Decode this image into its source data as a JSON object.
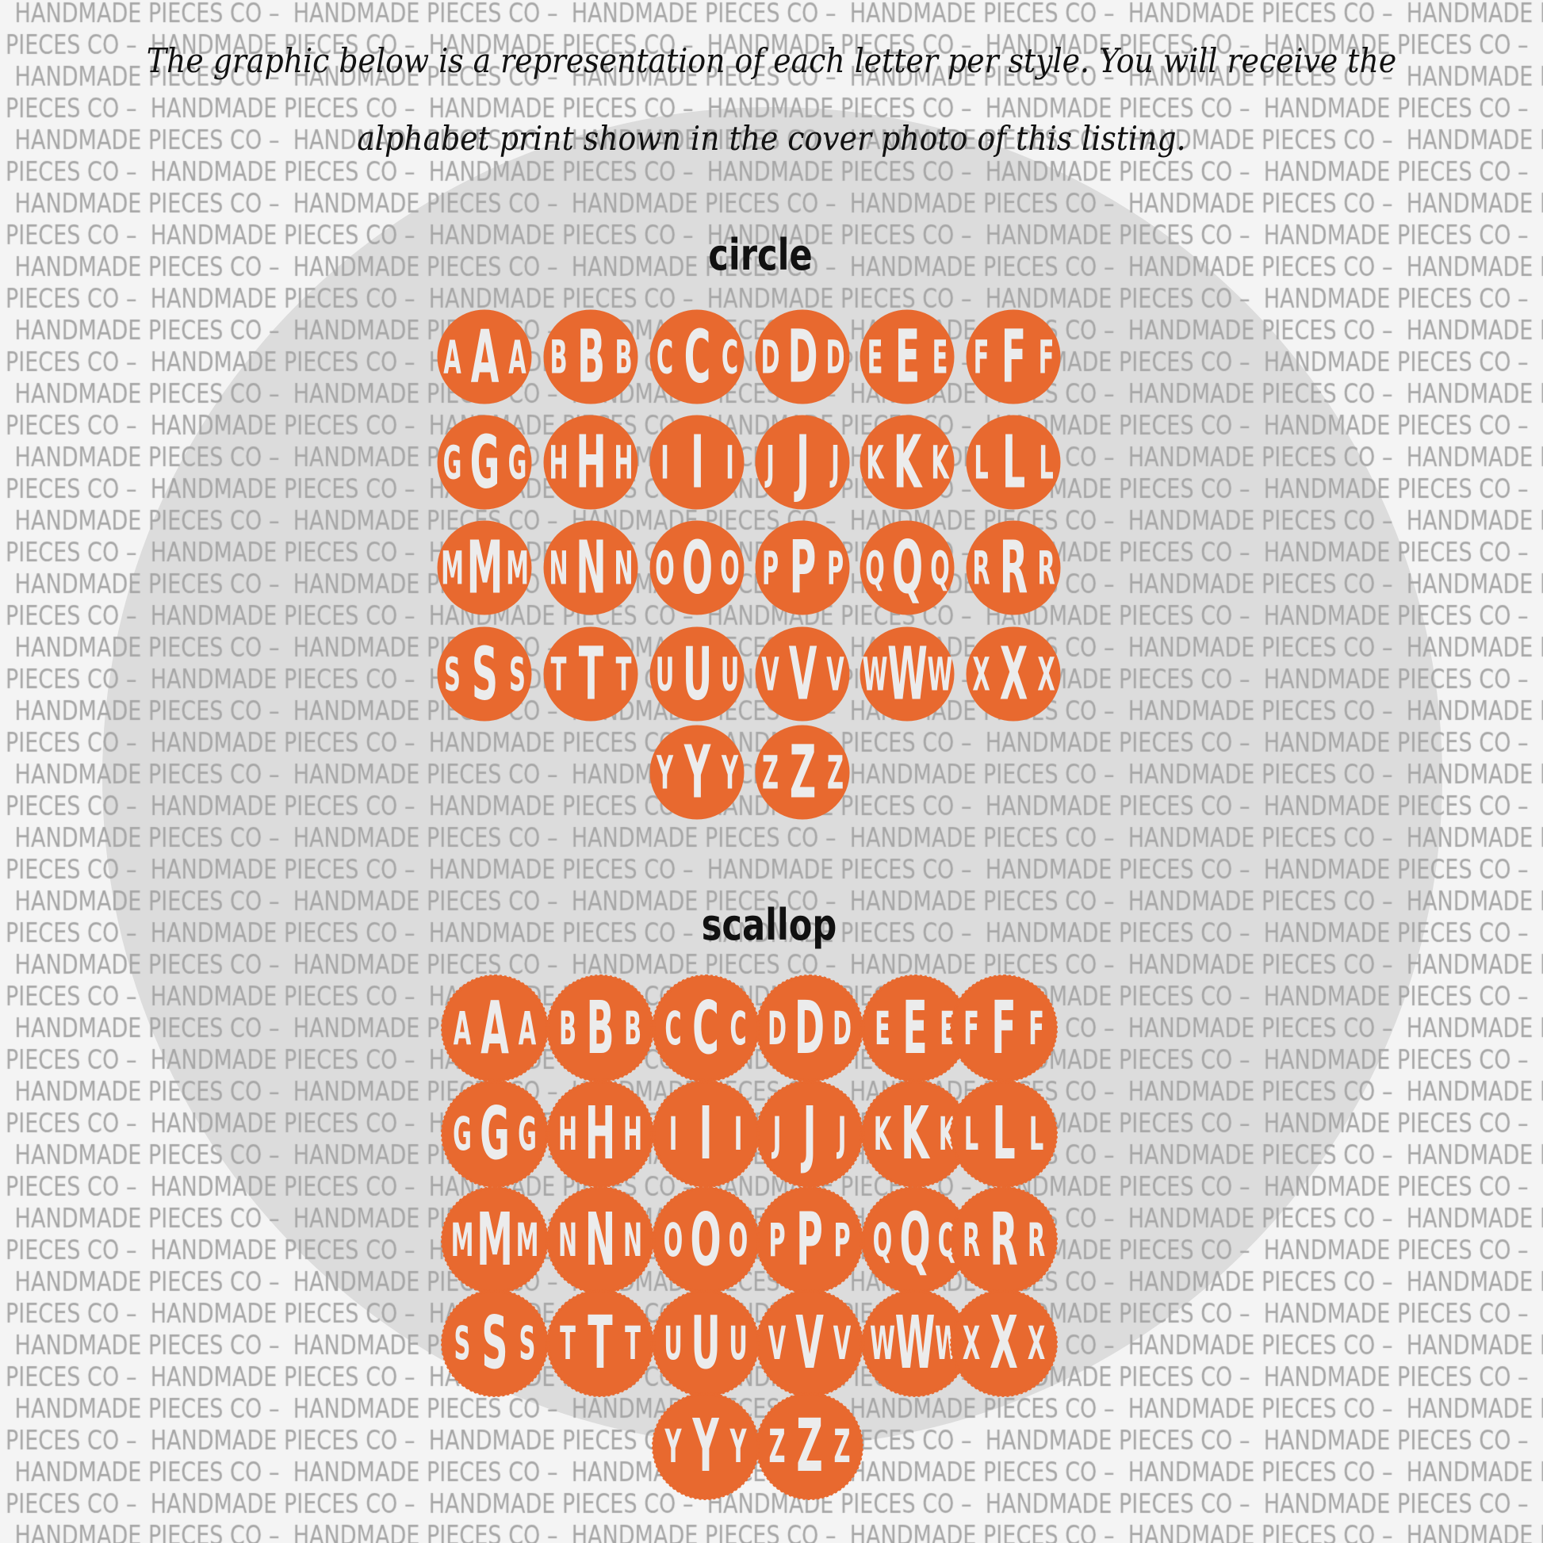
{
  "heading": {
    "line1": "The graphic below is a representation of each letter per style. You will receive the",
    "line2": "alphabet print shown in the cover photo of this listing."
  },
  "watermark_text": "HANDMADE PIECES CO –",
  "colors": {
    "monogram": "#e8692f",
    "background": "#f4f4f4",
    "watermark": "#a6a6a6",
    "background_circle": "#dcdcdc"
  },
  "sections": [
    {
      "title": "circle",
      "style": "circle",
      "letters": [
        "A",
        "B",
        "C",
        "D",
        "E",
        "F",
        "G",
        "H",
        "I",
        "J",
        "K",
        "L",
        "M",
        "N",
        "O",
        "P",
        "Q",
        "R",
        "S",
        "T",
        "U",
        "V",
        "W",
        "X",
        "Y",
        "Z"
      ]
    },
    {
      "title": "scallop",
      "style": "scallop",
      "letters": [
        "A",
        "B",
        "C",
        "D",
        "E",
        "F",
        "G",
        "H",
        "I",
        "J",
        "K",
        "L",
        "M",
        "N",
        "O",
        "P",
        "Q",
        "R",
        "S",
        "T",
        "U",
        "V",
        "W",
        "X",
        "Y",
        "Z"
      ]
    }
  ]
}
